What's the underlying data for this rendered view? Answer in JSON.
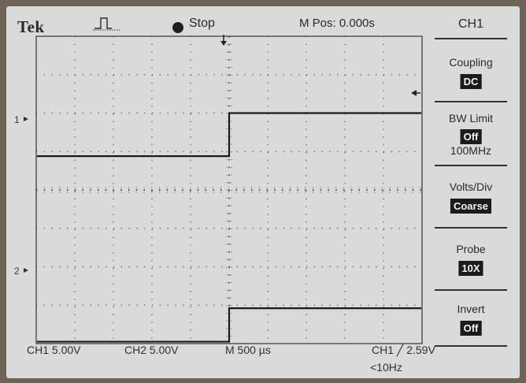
{
  "header": {
    "brand": "Tek",
    "run_state": "Stop",
    "mpos": "M Pos: 0.000s"
  },
  "menu": {
    "title": "CH1",
    "coupling": {
      "label": "Coupling",
      "value": "DC"
    },
    "bw_limit": {
      "label": "BW Limit",
      "value": "Off",
      "extra": "100MHz"
    },
    "volts_div": {
      "label": "Volts/Div",
      "value": "Coarse"
    },
    "probe": {
      "label": "Probe",
      "value": "10X"
    },
    "invert": {
      "label": "Invert",
      "value": "Off"
    }
  },
  "markers": {
    "ch1": "1",
    "ch2": "2"
  },
  "footer": {
    "ch1_scale": "CH1  5.00V",
    "ch2_scale": "CH2  5.00V",
    "timebase": "M 500 µs",
    "trigger": "CH1  ╱  2.59V",
    "frequency": "<10Hz"
  },
  "colors": {
    "screen": "#d8dbd9",
    "trace": "#1a1a1a",
    "grid": "#4a4a4a",
    "bezel": "#6d6457"
  },
  "icons": {
    "trigger_position": "down-arrow-icon",
    "trigger_level": "left-arrow-icon",
    "run_dot": "filled-circle-icon"
  },
  "signals": {
    "ch1": {
      "low": 0.88,
      "high": 2.0,
      "edge": 0.0
    },
    "ch2": {
      "low": -3.95,
      "high": -3.08,
      "edge": 0.0
    }
  }
}
